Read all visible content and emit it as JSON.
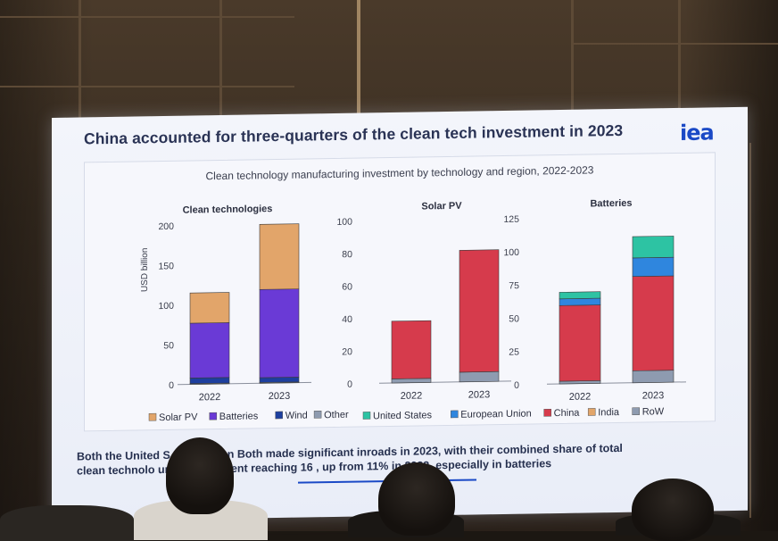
{
  "slide": {
    "title": "China accounted for three-quarters of the clean tech investment in 2023",
    "logo_text": "iea",
    "caption_lines": [
      "Both the United S        e European Both made significant inroads in 2023, with their combined share of total",
      "clean technolo         uring investment reaching 16        , up from 11% in 2022, especially in batteries"
    ]
  },
  "chart_data": [
    {
      "type": "bar",
      "stacked": true,
      "overall_title": "Clean technology manufacturing investment by technology and region, 2022-2023",
      "title": "Clean technologies",
      "ylabel": "USD billion",
      "ylim": [
        0,
        200
      ],
      "yticks": [
        0,
        50,
        100,
        150,
        200
      ],
      "categories": [
        "2022",
        "2023"
      ],
      "series": [
        {
          "name": "Other",
          "color": "#8e9bb0",
          "values": [
            1,
            1
          ]
        },
        {
          "name": "Wind",
          "color": "#1d3f9e",
          "values": [
            7,
            6
          ]
        },
        {
          "name": "Batteries",
          "color": "#6a3ad6",
          "values": [
            69,
            111
          ]
        },
        {
          "name": "Solar PV",
          "color": "#e2a56a",
          "values": [
            38,
            82
          ]
        }
      ],
      "legend": [
        "Solar PV",
        "Batteries",
        "Wind",
        "Other"
      ],
      "legend_colors": [
        "#e2a56a",
        "#6a3ad6",
        "#1d3f9e",
        "#8e9bb0"
      ]
    },
    {
      "type": "bar",
      "stacked": true,
      "title": "Solar PV",
      "ylim": [
        0,
        100
      ],
      "yticks": [
        0,
        20,
        40,
        60,
        80,
        100
      ],
      "categories": [
        "2022",
        "2023"
      ],
      "series": [
        {
          "name": "RoW",
          "color": "#8e9bb0",
          "values": [
            2.5,
            6
          ]
        },
        {
          "name": "China",
          "color": "#d63b4c",
          "values": [
            35.5,
            75
          ]
        }
      ]
    },
    {
      "type": "bar",
      "stacked": true,
      "title": "Batteries",
      "ylim": [
        0,
        125
      ],
      "yticks": [
        0,
        25,
        50,
        75,
        100,
        125
      ],
      "categories": [
        "2022",
        "2023"
      ],
      "series": [
        {
          "name": "RoW",
          "color": "#8e9bb0",
          "values": [
            2,
            9
          ]
        },
        {
          "name": "China",
          "color": "#d63b4c",
          "values": [
            57,
            71
          ]
        },
        {
          "name": "European Union",
          "color": "#2f86de",
          "values": [
            5,
            14
          ]
        },
        {
          "name": "United States",
          "color": "#2dc3a3",
          "values": [
            5,
            16
          ]
        }
      ],
      "legend": [
        "United States",
        "European Union",
        "China",
        "India",
        "RoW"
      ],
      "legend_colors": [
        "#2dc3a3",
        "#2f86de",
        "#d63b4c",
        "#e2a56a",
        "#8e9bb0"
      ]
    }
  ]
}
